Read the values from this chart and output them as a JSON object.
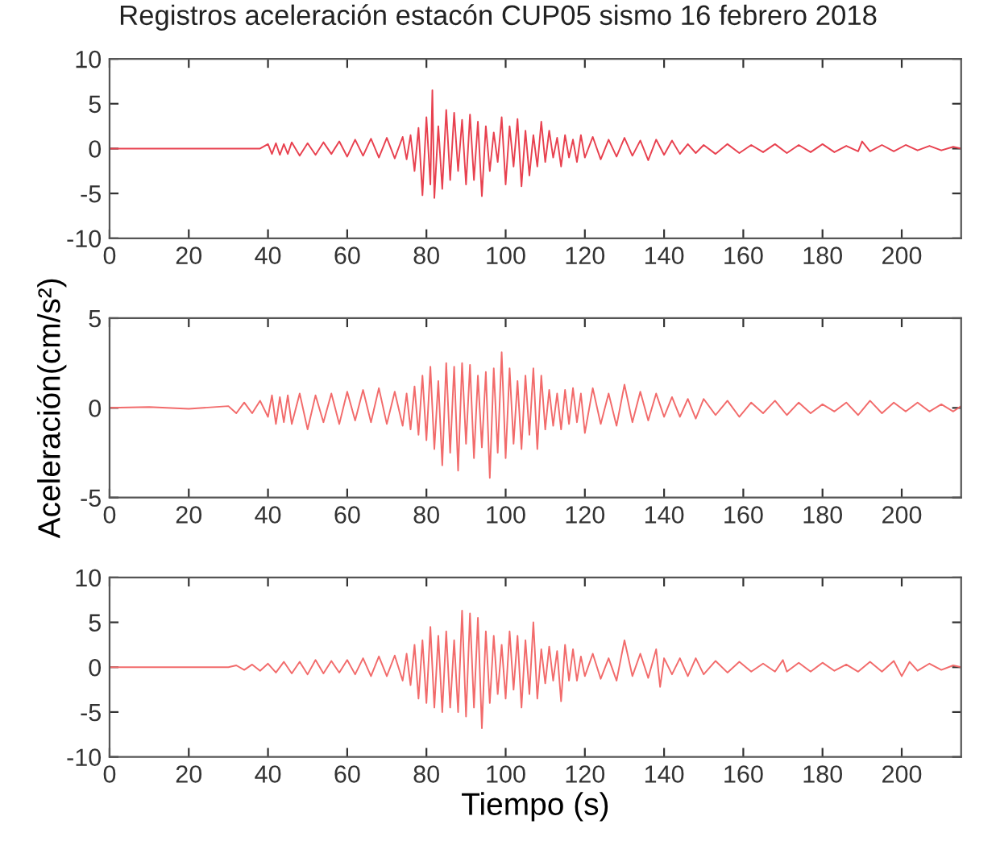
{
  "chart_data": [
    {
      "type": "line",
      "title": "Registros aceleración estacón CUP05 sismo 16 febrero 2018",
      "xlim": [
        0,
        215
      ],
      "xticks": [
        0,
        20,
        40,
        60,
        80,
        100,
        120,
        140,
        160,
        180,
        200
      ],
      "ylim": [
        -10,
        10
      ],
      "yticks": [
        -10,
        -5,
        0,
        5,
        10
      ],
      "x": [
        0,
        38,
        40,
        41,
        42,
        43,
        44,
        45,
        46,
        48,
        50,
        52,
        54,
        56,
        58,
        60,
        62,
        64,
        66,
        68,
        70,
        72,
        74,
        75,
        76,
        77,
        78,
        79,
        80,
        81,
        81.5,
        82,
        83,
        84,
        85,
        86,
        87,
        88,
        89,
        90,
        91,
        92,
        93,
        94,
        95,
        96,
        97,
        98,
        99,
        100,
        101,
        102,
        103,
        104,
        105,
        106,
        107,
        108,
        109,
        110,
        111,
        112,
        113,
        114,
        115,
        116,
        117,
        118,
        119,
        120,
        122,
        124,
        126,
        128,
        130,
        132,
        134,
        136,
        138,
        140,
        142,
        144,
        146,
        148,
        150,
        153,
        156,
        159,
        162,
        165,
        168,
        171,
        174,
        177,
        180,
        183,
        186,
        189,
        190,
        192,
        195,
        198,
        201,
        204,
        207,
        210,
        213,
        215
      ],
      "series": [
        {
          "color": "#e8414f",
          "values": [
            0,
            0,
            0.5,
            -0.6,
            0.6,
            -0.7,
            0.5,
            -0.6,
            0.7,
            -0.8,
            0.6,
            -0.7,
            0.7,
            -0.6,
            0.8,
            -0.9,
            1.0,
            -0.8,
            1.1,
            -1.0,
            1.2,
            -1.1,
            1.3,
            -1.2,
            1.5,
            -2.5,
            2.3,
            -5.2,
            3.5,
            -4.0,
            6.5,
            -5.5,
            2.5,
            -4.5,
            4.3,
            -3.5,
            4.0,
            -2.5,
            3.2,
            -4.0,
            3.8,
            -3.5,
            3.0,
            -5.3,
            2.5,
            -2.5,
            1.8,
            -1.5,
            3.5,
            -4.0,
            2.5,
            -2.0,
            3.3,
            -4.2,
            2.0,
            -3.0,
            1.5,
            -2.0,
            3.0,
            -1.5,
            2.0,
            -1.0,
            1.2,
            -2.0,
            1.5,
            -1.0,
            1.0,
            -1.5,
            1.5,
            -1.0,
            1.3,
            -1.2,
            1.0,
            -0.9,
            1.2,
            -0.8,
            0.9,
            -1.3,
            1.0,
            -0.7,
            0.9,
            -0.6,
            0.5,
            -0.5,
            0.4,
            -0.6,
            0.5,
            -0.5,
            0.4,
            -0.4,
            0.5,
            -0.5,
            0.4,
            -0.4,
            0.5,
            -0.4,
            0.3,
            -0.3,
            0.8,
            -0.3,
            0.4,
            -0.3,
            0.4,
            -0.2,
            0.3,
            -0.2,
            0.2,
            0
          ]
        }
      ]
    },
    {
      "type": "line",
      "ylabel": "Aceleración(cm/s²)",
      "xlim": [
        0,
        215
      ],
      "xticks": [
        0,
        20,
        40,
        60,
        80,
        100,
        120,
        140,
        160,
        180,
        200
      ],
      "ylim": [
        -5,
        5
      ],
      "yticks": [
        -5,
        0,
        5
      ],
      "x": [
        0,
        10,
        20,
        30,
        32,
        34,
        36,
        38,
        40,
        41,
        42,
        43,
        44,
        45,
        46,
        48,
        50,
        52,
        54,
        56,
        58,
        60,
        62,
        64,
        66,
        68,
        70,
        72,
        74,
        75,
        76,
        77,
        78,
        79,
        80,
        81,
        82,
        83,
        84,
        85,
        86,
        87,
        88,
        89,
        90,
        91,
        92,
        93,
        94,
        95,
        96,
        97,
        98,
        99,
        100,
        101,
        102,
        103,
        104,
        105,
        106,
        107,
        108,
        109,
        110,
        111,
        112,
        113,
        114,
        115,
        116,
        117,
        118,
        119,
        120,
        122,
        124,
        126,
        128,
        130,
        132,
        134,
        136,
        138,
        140,
        142,
        144,
        146,
        148,
        150,
        153,
        156,
        159,
        162,
        165,
        168,
        171,
        174,
        177,
        180,
        183,
        186,
        189,
        192,
        195,
        198,
        201,
        204,
        207,
        210,
        213,
        215
      ],
      "series": [
        {
          "color": "#f26b6b",
          "values": [
            0,
            0.05,
            -0.05,
            0.1,
            -0.3,
            0.3,
            -0.3,
            0.4,
            -0.5,
            0.7,
            -0.9,
            0.6,
            -0.8,
            0.7,
            -0.9,
            0.8,
            -1.2,
            0.7,
            -0.8,
            0.8,
            -0.9,
            0.9,
            -0.7,
            1.0,
            -0.8,
            1.1,
            -0.9,
            0.9,
            -1.0,
            0.8,
            -1.2,
            1.2,
            -1.5,
            1.8,
            -1.8,
            2.3,
            -2.3,
            1.5,
            -3.2,
            2.5,
            -2.5,
            2.3,
            -3.5,
            2.5,
            -2.0,
            2.4,
            -2.8,
            1.8,
            -2.2,
            2.0,
            -3.9,
            2.2,
            -2.5,
            3.1,
            -2.8,
            2.2,
            -2.0,
            1.5,
            -2.3,
            1.8,
            -1.5,
            2.2,
            -2.3,
            1.8,
            -1.2,
            1.0,
            -1.0,
            0.8,
            -1.2,
            1.0,
            -0.9,
            1.1,
            -0.8,
            0.8,
            -1.4,
            1.1,
            -0.9,
            0.8,
            -1.0,
            1.3,
            -0.8,
            0.9,
            -0.7,
            0.8,
            -0.5,
            0.6,
            -0.5,
            0.5,
            -0.6,
            0.5,
            -0.4,
            0.4,
            -0.5,
            0.3,
            -0.3,
            0.4,
            -0.4,
            0.3,
            -0.3,
            0.2,
            -0.2,
            0.3,
            -0.4,
            0.4,
            -0.3,
            0.3,
            -0.2,
            0.3,
            -0.2,
            0.2,
            -0.2,
            0.1
          ]
        }
      ]
    },
    {
      "type": "line",
      "xlabel": "Tiempo (s)",
      "xlim": [
        0,
        215
      ],
      "xticks": [
        0,
        20,
        40,
        60,
        80,
        100,
        120,
        140,
        160,
        180,
        200
      ],
      "ylim": [
        -10,
        10
      ],
      "yticks": [
        -10,
        -5,
        0,
        5,
        10
      ],
      "x": [
        0,
        30,
        32,
        34,
        36,
        38,
        40,
        42,
        44,
        46,
        48,
        50,
        52,
        54,
        56,
        58,
        60,
        62,
        64,
        66,
        68,
        70,
        72,
        74,
        75,
        76,
        77,
        78,
        79,
        80,
        81,
        82,
        83,
        84,
        85,
        86,
        87,
        88,
        89,
        90,
        91,
        92,
        93,
        94,
        95,
        96,
        97,
        98,
        99,
        100,
        101,
        102,
        103,
        104,
        105,
        106,
        107,
        108,
        109,
        110,
        111,
        112,
        113,
        114,
        115,
        116,
        117,
        118,
        119,
        120,
        122,
        124,
        126,
        128,
        130,
        132,
        134,
        136,
        138,
        139,
        140,
        142,
        144,
        146,
        148,
        150,
        153,
        156,
        159,
        162,
        165,
        168,
        170,
        171,
        174,
        177,
        180,
        183,
        186,
        189,
        192,
        195,
        198,
        200,
        202,
        204,
        207,
        210,
        213,
        215
      ],
      "series": [
        {
          "color": "#f26b6b",
          "values": [
            0,
            0,
            0.2,
            -0.3,
            0.3,
            -0.4,
            0.4,
            -0.6,
            0.6,
            -0.7,
            0.6,
            -0.8,
            0.8,
            -0.7,
            0.7,
            -0.6,
            0.8,
            -0.8,
            1.0,
            -1.0,
            1.2,
            -1.0,
            1.3,
            -1.5,
            1.5,
            -2.0,
            2.5,
            -3.5,
            3.0,
            -4.0,
            4.5,
            -4.5,
            3.5,
            -5.0,
            4.0,
            -4.5,
            3.0,
            -5.0,
            6.3,
            -5.5,
            6.0,
            -4.5,
            5.5,
            -6.8,
            4.0,
            -4.0,
            3.5,
            -3.0,
            2.5,
            -3.5,
            4.0,
            -2.5,
            3.5,
            -4.5,
            3.0,
            -3.0,
            5.0,
            -3.5,
            2.0,
            -1.8,
            2.3,
            -1.5,
            1.8,
            -3.8,
            2.5,
            -1.5,
            2.0,
            -1.5,
            1.2,
            -1.0,
            1.5,
            -1.3,
            1.0,
            -1.5,
            3.0,
            -1.0,
            1.5,
            -1.2,
            2.0,
            -2.2,
            1.0,
            -0.8,
            1.0,
            -1.0,
            1.0,
            -0.8,
            0.7,
            -0.6,
            0.6,
            -0.5,
            0.4,
            -0.5,
            0.8,
            -0.5,
            0.5,
            -0.5,
            0.5,
            -0.4,
            0.3,
            -0.5,
            0.6,
            -0.5,
            0.7,
            -1.0,
            0.6,
            -0.4,
            0.4,
            -0.3,
            0.2,
            0
          ]
        }
      ]
    }
  ]
}
